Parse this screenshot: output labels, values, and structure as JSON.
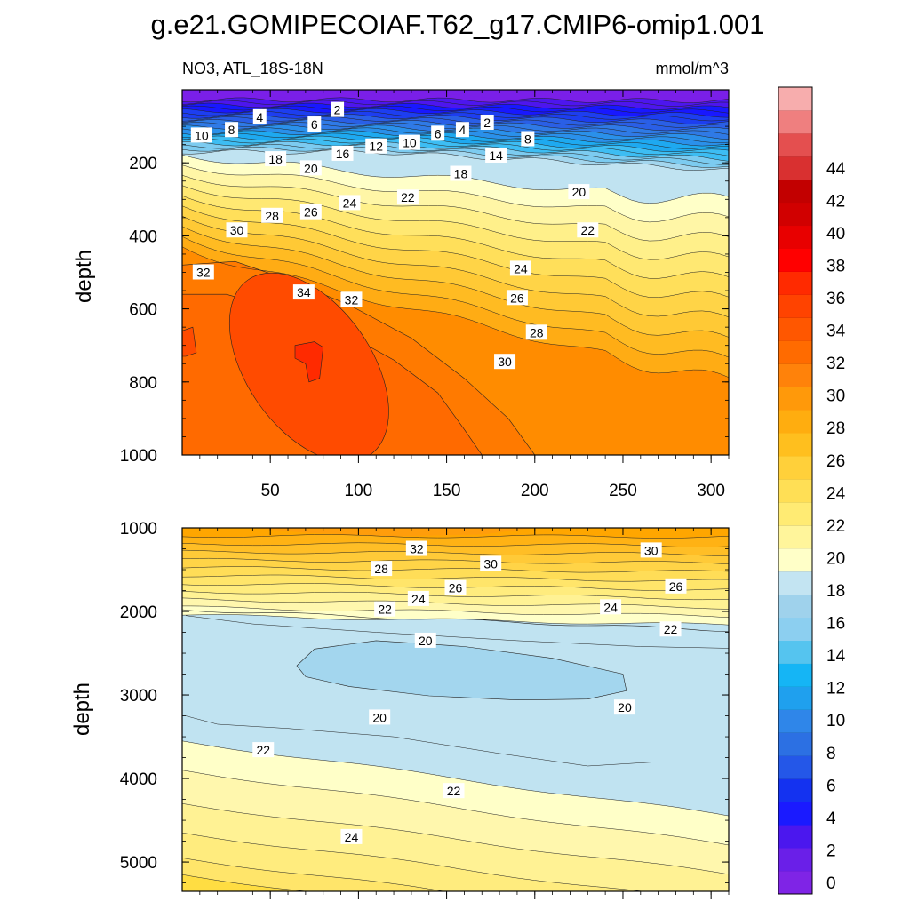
{
  "chart_data": {
    "type": "heatmap",
    "title": "g.e21.GOMIPECOIAF.T62_g17.CMIP6-omip1.001",
    "subtitle_left": "NO3, ATL_18S-18N",
    "subtitle_right": "mmol/m^3",
    "colorbar": {
      "levels": [
        0,
        2,
        4,
        6,
        8,
        10,
        12,
        14,
        16,
        18,
        20,
        22,
        24,
        26,
        28,
        30,
        32,
        34,
        36,
        38,
        40,
        42,
        44
      ],
      "tick_labels": [
        "0",
        "2",
        "4",
        "6",
        "8",
        "10",
        "12",
        "14",
        "16",
        "18",
        "20",
        "22",
        "24",
        "26",
        "28",
        "30",
        "32",
        "34",
        "36",
        "38",
        "40",
        "42",
        "44"
      ],
      "colors": [
        "#7f24e6",
        "#6a1fe8",
        "#4b17ee",
        "#1a1aff",
        "#1432f0",
        "#2457e8",
        "#2c70e3",
        "#2f86e9",
        "#1fa0ee",
        "#15b5f5",
        "#55c4ef",
        "#8ccff0",
        "#9fd2ec",
        "#c3e4f2",
        "#ffffc8",
        "#fff59b",
        "#ffeb73",
        "#ffdf55",
        "#ffd03a",
        "#ffbf1e",
        "#ffad0f",
        "#ff990a",
        "#ff820a",
        "#ff6b00",
        "#ff5700",
        "#ff4300",
        "#ff2a00",
        "#ff0000",
        "#e80000",
        "#d10000",
        "#c20000",
        "#d93030",
        "#e44f4f",
        "#ef7f7f",
        "#f7adad"
      ]
    },
    "panels": [
      {
        "name": "upper",
        "ylabel": "depth",
        "y_range": [
          0,
          1000
        ],
        "y_ticks": [
          200,
          400,
          600,
          800,
          1000
        ],
        "y_tick_labels": [
          "200",
          "400",
          "600",
          "800",
          "1000"
        ],
        "x_range": [
          0,
          310
        ],
        "x_ticks": [
          50,
          100,
          150,
          200,
          250,
          300
        ],
        "x_tick_labels": [
          "50",
          "100",
          "150",
          "200",
          "250",
          "300"
        ],
        "contour_labels": [
          {
            "text": "10",
            "x": 11,
            "y": 125
          },
          {
            "text": "8",
            "x": 28,
            "y": 110
          },
          {
            "text": "4",
            "x": 44,
            "y": 75
          },
          {
            "text": "6",
            "x": 75,
            "y": 95
          },
          {
            "text": "2",
            "x": 88,
            "y": 55
          },
          {
            "text": "18",
            "x": 53,
            "y": 190
          },
          {
            "text": "20",
            "x": 73,
            "y": 215
          },
          {
            "text": "16",
            "x": 91,
            "y": 175
          },
          {
            "text": "12",
            "x": 110,
            "y": 155
          },
          {
            "text": "10",
            "x": 129,
            "y": 145
          },
          {
            "text": "6",
            "x": 145,
            "y": 120
          },
          {
            "text": "4",
            "x": 159,
            "y": 110
          },
          {
            "text": "2",
            "x": 173,
            "y": 90
          },
          {
            "text": "14",
            "x": 178,
            "y": 180
          },
          {
            "text": "8",
            "x": 196,
            "y": 135
          },
          {
            "text": "18",
            "x": 158,
            "y": 230
          },
          {
            "text": "22",
            "x": 128,
            "y": 295
          },
          {
            "text": "24",
            "x": 95,
            "y": 310
          },
          {
            "text": "26",
            "x": 73,
            "y": 335
          },
          {
            "text": "28",
            "x": 51,
            "y": 345
          },
          {
            "text": "30",
            "x": 31,
            "y": 385
          },
          {
            "text": "20",
            "x": 225,
            "y": 280
          },
          {
            "text": "22",
            "x": 230,
            "y": 385
          },
          {
            "text": "24",
            "x": 192,
            "y": 490
          },
          {
            "text": "26",
            "x": 190,
            "y": 570
          },
          {
            "text": "28",
            "x": 201,
            "y": 665
          },
          {
            "text": "30",
            "x": 183,
            "y": 745
          },
          {
            "text": "32",
            "x": 12,
            "y": 500
          },
          {
            "text": "34",
            "x": 69,
            "y": 555
          },
          {
            "text": "32",
            "x": 96,
            "y": 575
          }
        ]
      },
      {
        "name": "lower",
        "ylabel": "depth",
        "y_range": [
          1000,
          5350
        ],
        "y_ticks": [
          1000,
          2000,
          3000,
          4000,
          5000
        ],
        "y_tick_labels": [
          "1000",
          "2000",
          "3000",
          "4000",
          "5000"
        ],
        "x_range": [
          0,
          310
        ],
        "x_ticks": [
          50,
          100,
          150,
          200,
          250,
          300
        ],
        "contour_labels": [
          {
            "text": "32",
            "x": 133,
            "y": 1250
          },
          {
            "text": "30",
            "x": 175,
            "y": 1430
          },
          {
            "text": "30",
            "x": 266,
            "y": 1270
          },
          {
            "text": "28",
            "x": 113,
            "y": 1490
          },
          {
            "text": "26",
            "x": 155,
            "y": 1720
          },
          {
            "text": "26",
            "x": 280,
            "y": 1700
          },
          {
            "text": "24",
            "x": 134,
            "y": 1850
          },
          {
            "text": "24",
            "x": 243,
            "y": 1950
          },
          {
            "text": "22",
            "x": 115,
            "y": 1975
          },
          {
            "text": "22",
            "x": 277,
            "y": 2215
          },
          {
            "text": "20",
            "x": 138,
            "y": 2350
          },
          {
            "text": "20",
            "x": 251,
            "y": 3150
          },
          {
            "text": "20",
            "x": 112,
            "y": 3270
          },
          {
            "text": "22",
            "x": 46,
            "y": 3660
          },
          {
            "text": "22",
            "x": 154,
            "y": 4150
          },
          {
            "text": "24",
            "x": 96,
            "y": 4700
          }
        ]
      }
    ]
  }
}
